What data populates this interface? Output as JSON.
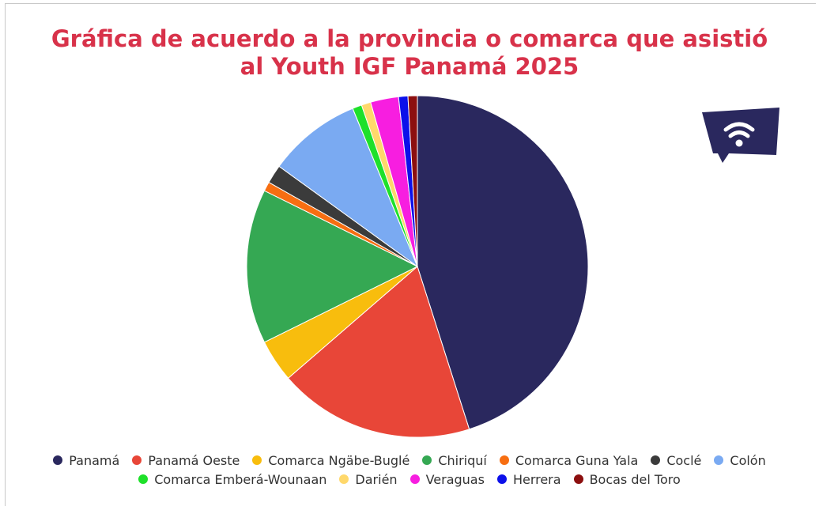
{
  "chart_data": {
    "type": "pie",
    "title_lines": [
      "Gráfica de acuerdo a la provincia o comarca que asistió",
      "al Youth IGF Panamá 2025"
    ],
    "labels": [
      "Panamá",
      "Panamá Oeste",
      "Comarca Ngäbe-Buglé",
      "Chiriquí",
      "Comarca Guna Yala",
      "Coclé",
      "Colón",
      "Comarca Emberá-Wounaan",
      "Darién",
      "Veraguas",
      "Herrera",
      "Bocas del Toro"
    ],
    "values": [
      45.9,
      18.9,
      4.1,
      14.9,
      0.9,
      1.8,
      9.0,
      0.9,
      0.9,
      2.7,
      0.9,
      0.9
    ],
    "colors": [
      "#2a285e",
      "#e84638",
      "#f8bd0d",
      "#35a853",
      "#f76e11",
      "#3b3b3b",
      "#7aaaf2",
      "#1ee02a",
      "#ffd86b",
      "#f71ee0",
      "#0c10ea",
      "#8c0f0f"
    ],
    "legend_position": "bottom",
    "start": "top-clockwise"
  },
  "logo": {
    "icon": "wifi-speech-bubble-icon",
    "color": "#2a285e"
  }
}
